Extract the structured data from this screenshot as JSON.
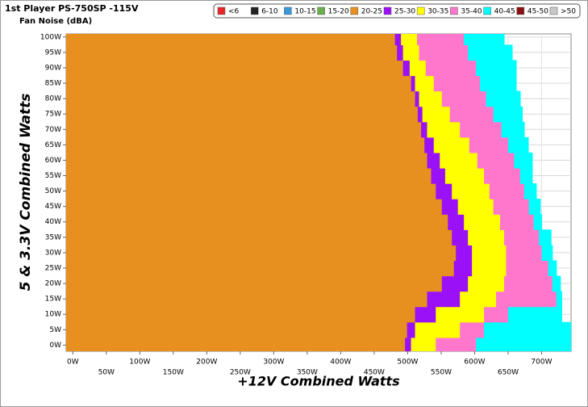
{
  "chart_data": {
    "type": "heatmap",
    "title": "1st Player PS-750SP -115V",
    "subtitle": "Fan Noise (dBA)",
    "x_label": "+12V Combined Watts",
    "y_label": "5 & 3.3V Combined Watts",
    "xlim": [
      -10,
      744
    ],
    "ylim": [
      -2,
      101
    ],
    "xticks": [
      {
        "value": 0,
        "label": "0W"
      },
      {
        "value": 50,
        "label": "50W"
      },
      {
        "value": 100,
        "label": "100W"
      },
      {
        "value": 150,
        "label": "150W"
      },
      {
        "value": 200,
        "label": "200W"
      },
      {
        "value": 250,
        "label": "250W"
      },
      {
        "value": 300,
        "label": "300W"
      },
      {
        "value": 350,
        "label": "350W"
      },
      {
        "value": 400,
        "label": "400W"
      },
      {
        "value": 450,
        "label": "450W"
      },
      {
        "value": 500,
        "label": "500W"
      },
      {
        "value": 550,
        "label": "550W"
      },
      {
        "value": 600,
        "label": "600W"
      },
      {
        "value": 650,
        "label": "650W"
      },
      {
        "value": 700,
        "label": "700W"
      }
    ],
    "yticks": [
      {
        "value": 0,
        "label": "0W"
      },
      {
        "value": 5,
        "label": "5W"
      },
      {
        "value": 10,
        "label": "10W"
      },
      {
        "value": 15,
        "label": "15W"
      },
      {
        "value": 20,
        "label": "20W"
      },
      {
        "value": 25,
        "label": "25W"
      },
      {
        "value": 30,
        "label": "30W"
      },
      {
        "value": 35,
        "label": "35W"
      },
      {
        "value": 40,
        "label": "40W"
      },
      {
        "value": 45,
        "label": "45W"
      },
      {
        "value": 50,
        "label": "50W"
      },
      {
        "value": 55,
        "label": "55W"
      },
      {
        "value": 60,
        "label": "60W"
      },
      {
        "value": 65,
        "label": "65W"
      },
      {
        "value": 70,
        "label": "70W"
      },
      {
        "value": 75,
        "label": "75W"
      },
      {
        "value": 80,
        "label": "80W"
      },
      {
        "value": 85,
        "label": "85W"
      },
      {
        "value": 90,
        "label": "90W"
      },
      {
        "value": 95,
        "label": "95W"
      },
      {
        "value": 100,
        "label": "100W"
      }
    ],
    "grid": true,
    "y": [
      0,
      5,
      10,
      15,
      20,
      25,
      30,
      35,
      40,
      45,
      50,
      55,
      60,
      65,
      70,
      75,
      80,
      85,
      90,
      95,
      100
    ],
    "series": [
      {
        "name": "<6",
        "color": "#e8262a"
      },
      {
        "name": "6-10",
        "color": "#222222"
      },
      {
        "name": "10-15",
        "color": "#3a9ad9"
      },
      {
        "name": "15-20",
        "color": "#6ab04c"
      },
      {
        "name": "20-25",
        "color": "#e8901f",
        "values": [
          496,
          499,
          511,
          529,
          551,
          569,
          572,
          566,
          560,
          551,
          542,
          535,
          529,
          525,
          520,
          515,
          511,
          505,
          493,
          484,
          481
        ]
      },
      {
        "name": "25-30",
        "color": "#9b11f7",
        "values": [
          505,
          511,
          542,
          578,
          590,
          596,
          596,
          590,
          584,
          575,
          566,
          556,
          548,
          539,
          529,
          522,
          517,
          511,
          503,
          493,
          490
        ]
      },
      {
        "name": "30-35",
        "color": "#ffff00",
        "values": [
          542,
          578,
          614,
          632,
          644,
          647,
          647,
          644,
          638,
          628,
          622,
          614,
          604,
          592,
          578,
          563,
          551,
          539,
          527,
          517,
          514
        ]
      },
      {
        "name": "35-40",
        "color": "#ff77cc",
        "values": [
          602,
          614,
          650,
          722,
          716,
          710,
          700,
          696,
          688,
          681,
          674,
          668,
          659,
          650,
          640,
          628,
          617,
          608,
          602,
          590,
          584
        ]
      },
      {
        "name": "40-45",
        "color": "#00ffff",
        "values": [
          744,
          744,
          730,
          730,
          728,
          722,
          716,
          714,
          700,
          698,
          692,
          686,
          686,
          680,
          674,
          671,
          668,
          662,
          662,
          656,
          644
        ]
      },
      {
        "name": "45-50",
        "color": "#8b0f0f"
      },
      {
        "name": ">50",
        "color": "#c8c8c8"
      }
    ]
  }
}
